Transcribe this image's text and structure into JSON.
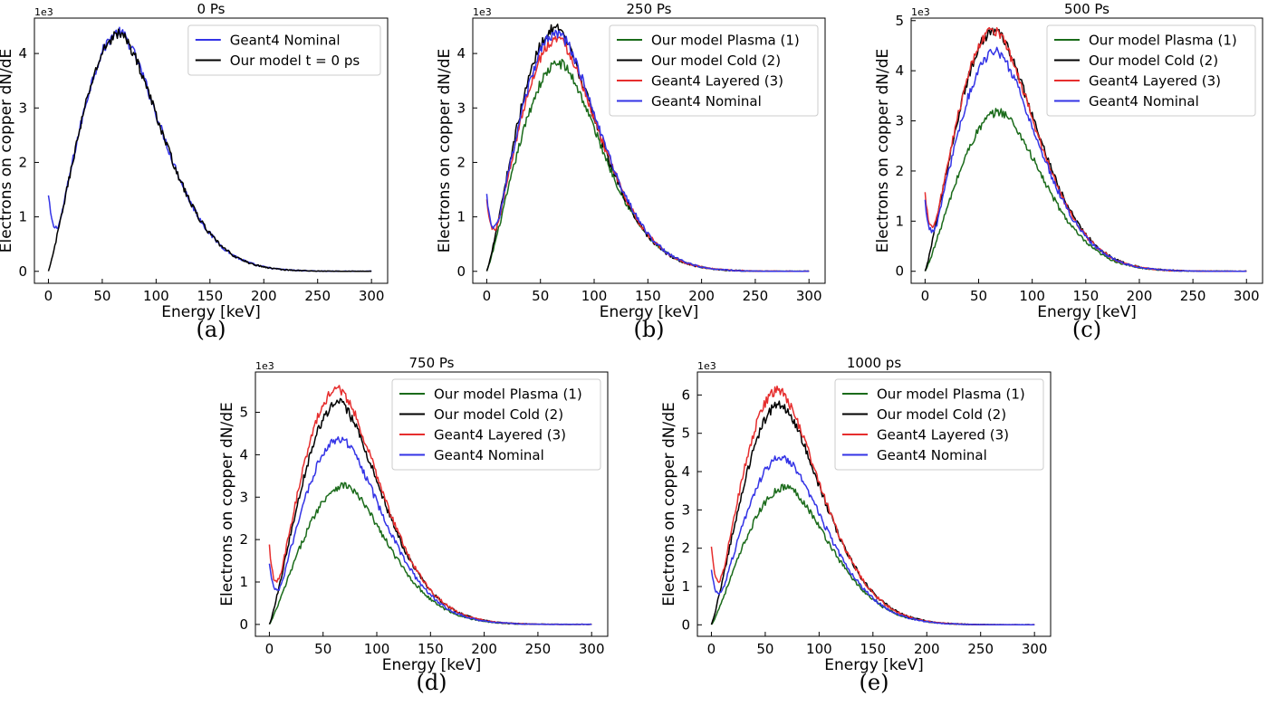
{
  "chart_data": [
    {
      "type": "line",
      "panel_label": "(a)",
      "title": "0 Ps",
      "xlabel": "Energy [keV]",
      "ylabel": "Electrons on copper dN/dE",
      "y_offset_label": "1e3",
      "xlim": [
        -13,
        315
      ],
      "ylim": [
        -0.22,
        4.65
      ],
      "xticks": [
        "0",
        "50",
        "100",
        "150",
        "200",
        "250",
        "300"
      ],
      "yticks": [
        "0",
        "1",
        "2",
        "3",
        "4"
      ],
      "legend_position": "top-right",
      "series": [
        {
          "name": "Geant4 Nominal",
          "color": "#3333e6",
          "peak_x": 66,
          "peak_y": 4.38,
          "low_start": 1.38,
          "low_end": 1.15
        },
        {
          "name": "Our model t = 0 ps",
          "color": "#000000",
          "peak_x": 66,
          "peak_y": 4.36
        }
      ]
    },
    {
      "type": "line",
      "panel_label": "(b)",
      "title": "250 Ps",
      "xlabel": "Energy [keV]",
      "ylabel": "Electrons on copper dN/dE",
      "y_offset_label": "1e3",
      "xlim": [
        -13,
        315
      ],
      "ylim": [
        -0.22,
        4.65
      ],
      "xticks": [
        "0",
        "50",
        "100",
        "150",
        "200",
        "250",
        "300"
      ],
      "yticks": [
        "0",
        "1",
        "2",
        "3",
        "4"
      ],
      "legend_position": "top-right",
      "series": [
        {
          "name": "Our model Plasma (1)",
          "color": "#1a6b1a",
          "peak_x": 68,
          "peak_y": 3.82
        },
        {
          "name": "Our model Cold (2)",
          "color": "#000000",
          "peak_x": 64,
          "peak_y": 4.45
        },
        {
          "name": "Geant4 Layered (3)",
          "color": "#e62e2e",
          "peak_x": 66,
          "peak_y": 4.28,
          "low_start": 1.3,
          "low_end": 1.1
        },
        {
          "name": "Geant4 Nominal",
          "color": "#3333e6",
          "peak_x": 66,
          "peak_y": 4.38,
          "low_start": 1.4,
          "low_end": 1.15
        }
      ]
    },
    {
      "type": "line",
      "panel_label": "(c)",
      "title": "500 Ps",
      "xlabel": "Energy [keV]",
      "ylabel": "Electrons on copper dN/dE",
      "y_offset_label": "1e3",
      "xlim": [
        -13,
        315
      ],
      "ylim": [
        -0.24,
        5.05
      ],
      "xticks": [
        "0",
        "50",
        "100",
        "150",
        "200",
        "250",
        "300"
      ],
      "yticks": [
        "0",
        "1",
        "2",
        "3",
        "4",
        "5"
      ],
      "legend_position": "top-right",
      "series": [
        {
          "name": "Our model Plasma (1)",
          "color": "#1a6b1a",
          "peak_x": 70,
          "peak_y": 3.18
        },
        {
          "name": "Our model Cold (2)",
          "color": "#000000",
          "peak_x": 65,
          "peak_y": 4.8
        },
        {
          "name": "Geant4 Layered (3)",
          "color": "#e62e2e",
          "peak_x": 64,
          "peak_y": 4.82,
          "low_start": 1.55,
          "low_end": 1.25
        },
        {
          "name": "Geant4 Nominal",
          "color": "#3333e6",
          "peak_x": 66,
          "peak_y": 4.38,
          "low_start": 1.4,
          "low_end": 1.15
        }
      ]
    },
    {
      "type": "line",
      "panel_label": "(d)",
      "title": "750 Ps",
      "xlabel": "Energy [keV]",
      "ylabel": "Electrons on copper dN/dE",
      "y_offset_label": "1e3",
      "xlim": [
        -13,
        315
      ],
      "ylim": [
        -0.28,
        5.95
      ],
      "xticks": [
        "0",
        "50",
        "100",
        "150",
        "200",
        "250",
        "300"
      ],
      "yticks": [
        "0",
        "1",
        "2",
        "3",
        "4",
        "5"
      ],
      "legend_position": "top-right",
      "series": [
        {
          "name": "Our model Plasma (1)",
          "color": "#1a6b1a",
          "peak_x": 70,
          "peak_y": 3.28
        },
        {
          "name": "Our model Cold (2)",
          "color": "#000000",
          "peak_x": 65,
          "peak_y": 5.22
        },
        {
          "name": "Geant4 Layered (3)",
          "color": "#e62e2e",
          "peak_x": 64,
          "peak_y": 5.55,
          "low_start": 1.85,
          "low_end": 1.45
        },
        {
          "name": "Geant4 Nominal",
          "color": "#3333e6",
          "peak_x": 66,
          "peak_y": 4.38,
          "low_start": 1.4,
          "low_end": 1.15
        }
      ]
    },
    {
      "type": "line",
      "panel_label": "(e)",
      "title": "1000 ps",
      "xlabel": "Energy [keV]",
      "ylabel": "Electrons on copper dN/dE",
      "y_offset_label": "1e3",
      "xlim": [
        -13,
        315
      ],
      "ylim": [
        -0.3,
        6.6
      ],
      "xticks": [
        "0",
        "50",
        "100",
        "150",
        "200",
        "250",
        "300"
      ],
      "yticks": [
        "0",
        "1",
        "2",
        "3",
        "4",
        "5",
        "6"
      ],
      "legend_position": "top-right",
      "series": [
        {
          "name": "Our model Plasma (1)",
          "color": "#1a6b1a",
          "peak_x": 70,
          "peak_y": 3.6
        },
        {
          "name": "Our model Cold (2)",
          "color": "#000000",
          "peak_x": 64,
          "peak_y": 5.75
        },
        {
          "name": "Geant4 Layered (3)",
          "color": "#e62e2e",
          "peak_x": 62,
          "peak_y": 6.12,
          "low_start": 2.0,
          "low_end": 1.6
        },
        {
          "name": "Geant4 Nominal",
          "color": "#3333e6",
          "peak_x": 66,
          "peak_y": 4.38,
          "low_start": 1.4,
          "low_end": 1.15
        }
      ]
    }
  ]
}
